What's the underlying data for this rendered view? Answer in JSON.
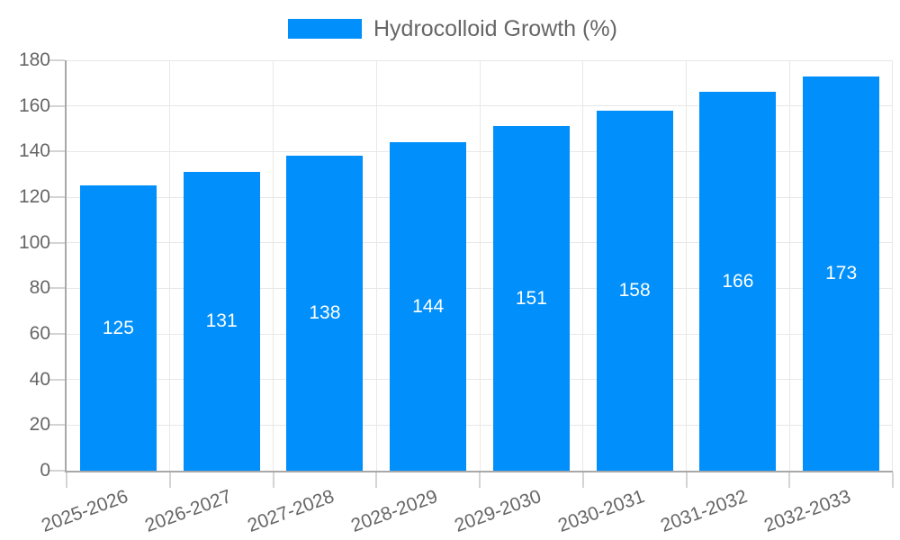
{
  "chart_data": {
    "type": "bar",
    "title": "",
    "xlabel": "",
    "ylabel": "",
    "legend": {
      "label": "Hydrocolloid Growth (%)",
      "position": "top-center",
      "marker": "rect"
    },
    "categories": [
      "2025-2026",
      "2026-2027",
      "2027-2028",
      "2028-2029",
      "2029-2030",
      "2030-2031",
      "2031-2032",
      "2032-2033"
    ],
    "values": [
      125,
      131,
      138,
      144,
      151,
      158,
      166,
      173
    ],
    "bar_value_labels_shown": true,
    "ylim": [
      0,
      180
    ],
    "yticks": [
      0,
      20,
      40,
      60,
      80,
      100,
      120,
      140,
      160,
      180
    ],
    "grid": "both",
    "x_label_rotation_deg": -20
  },
  "colors": {
    "bar": "#008FFB",
    "bar_label_text": "#ffffff",
    "axis_text": "#666666",
    "legend_text": "#666666",
    "gridline": "#e8e8e8",
    "axis_line": "#a8a8a8",
    "tick_line": "#d4d4d4",
    "background": "#ffffff"
  }
}
